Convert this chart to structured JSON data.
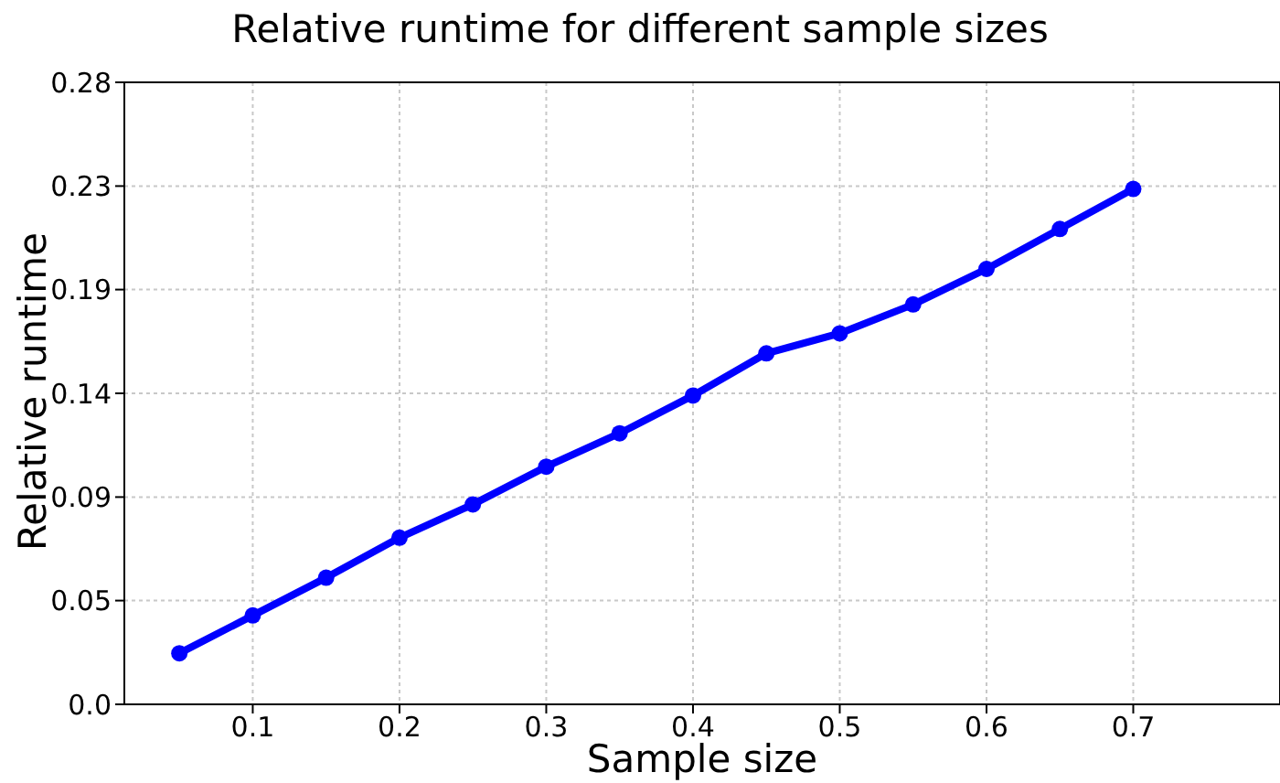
{
  "chart_data": {
    "type": "line",
    "title": "Relative runtime for different sample sizes",
    "xlabel": "Sample size",
    "ylabel": "Relative runtime",
    "x": [
      0.05,
      0.1,
      0.15,
      0.2,
      0.25,
      0.3,
      0.35,
      0.4,
      0.45,
      0.5,
      0.55,
      0.6,
      0.65,
      0.7
    ],
    "series": [
      {
        "color": "#0000ff",
        "values": [
          0.023,
          0.04,
          0.057,
          0.075,
          0.09,
          0.107,
          0.122,
          0.139,
          0.158,
          0.167,
          0.18,
          0.196,
          0.214,
          0.232
        ]
      }
    ],
    "xlim": [
      0.0125,
      0.8
    ],
    "xticks": [
      0.1,
      0.2,
      0.3,
      0.4,
      0.5,
      0.6,
      0.7
    ],
    "ylim": [
      0,
      0.28
    ],
    "yticks": [
      {
        "value": 0,
        "label": "0.0"
      },
      {
        "value": 0.0467,
        "label": "0.05"
      },
      {
        "value": 0.0933,
        "label": "0.09"
      },
      {
        "value": 0.14,
        "label": "0.14"
      },
      {
        "value": 0.1867,
        "label": "0.19"
      },
      {
        "value": 0.2333,
        "label": "0.23"
      },
      {
        "value": 0.28,
        "label": "0.28"
      }
    ],
    "grid": true,
    "marker": "circle",
    "line_style": "solid",
    "legend": false
  }
}
